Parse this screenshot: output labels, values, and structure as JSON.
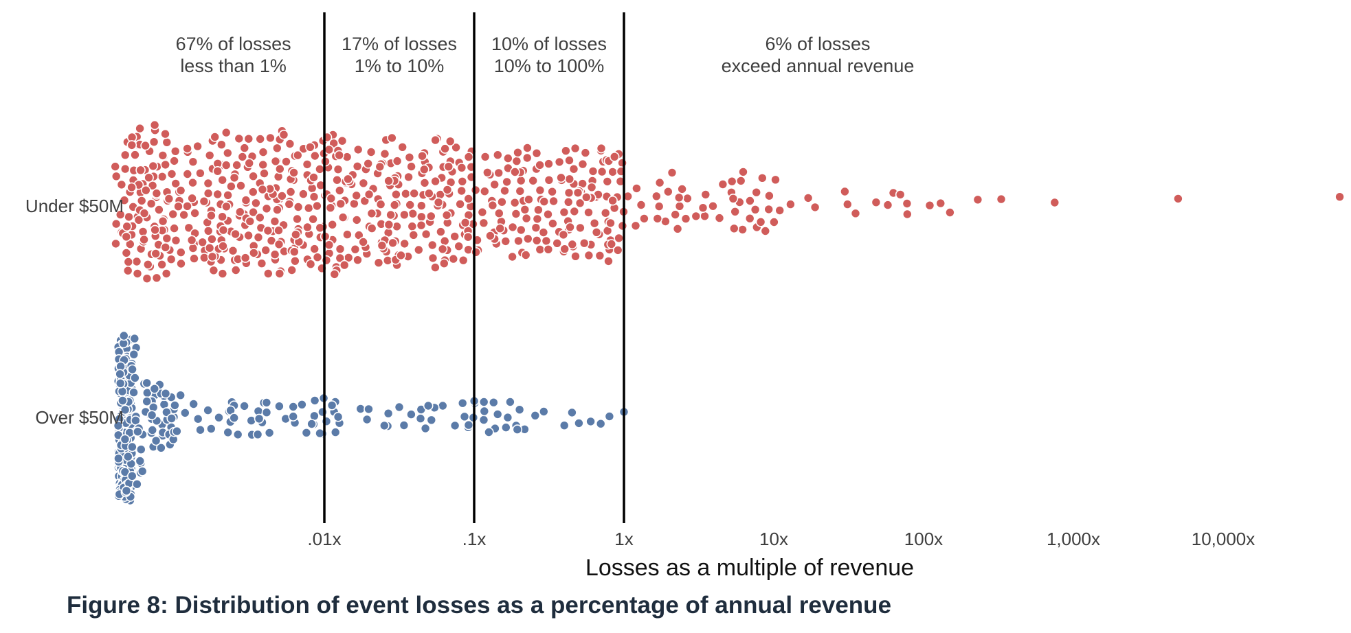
{
  "caption": "Figure 8: Distribution of event losses as a percentage of annual revenue",
  "chart_data": {
    "type": "scatter",
    "subtype": "beeswarm",
    "xlabel": "Losses as a multiple of revenue",
    "x_scale": "log",
    "xlim": [
      0.0003,
      80000
    ],
    "x_ticks": [
      {
        "value": 0.01,
        "label": ".01x"
      },
      {
        "value": 0.1,
        "label": ".1x"
      },
      {
        "value": 1,
        "label": "1x"
      },
      {
        "value": 10,
        "label": "10x"
      },
      {
        "value": 100,
        "label": "100x"
      },
      {
        "value": 1000,
        "label": "1,000x"
      },
      {
        "value": 10000,
        "label": "10,000x"
      }
    ],
    "categories": [
      "Under $50M",
      "Over $50M"
    ],
    "threshold_lines": [
      0.01,
      0.1,
      1
    ],
    "regions": [
      {
        "line1": "67% of losses",
        "line2": "less than 1%",
        "x_from": 0.0004,
        "x_to": 0.01
      },
      {
        "line1": "17% of losses",
        "line2": "1% to 10%",
        "x_from": 0.01,
        "x_to": 0.1
      },
      {
        "line1": "10% of losses",
        "line2": "10% to 100%",
        "x_from": 0.1,
        "x_to": 1
      },
      {
        "line1": "6% of losses",
        "line2": "exceed annual revenue",
        "x_from": 1,
        "x_to": 60000
      }
    ],
    "grid": false,
    "legend": "none",
    "series": [
      {
        "category": "Under $50M",
        "color": "#d05c5a",
        "density_bins": [
          {
            "x_from": 0.0004,
            "x_to": 0.001,
            "count": 100
          },
          {
            "x_from": 0.001,
            "x_to": 0.01,
            "count": 210
          },
          {
            "x_from": 0.01,
            "x_to": 0.1,
            "count": 190
          },
          {
            "x_from": 0.1,
            "x_to": 1,
            "count": 150
          },
          {
            "x_from": 1,
            "x_to": 10,
            "count": 45
          },
          {
            "x_from": 10,
            "x_to": 100,
            "count": 15
          }
        ],
        "outliers": [
          110,
          130,
          150,
          230,
          330,
          750,
          5000,
          60000
        ]
      },
      {
        "category": "Over $50M",
        "color": "#5b7ba8",
        "density_bins": [
          {
            "x_from": 0.00042,
            "x_to": 0.00052,
            "count": 230
          },
          {
            "x_from": 0.00052,
            "x_to": 0.001,
            "count": 60
          },
          {
            "x_from": 0.001,
            "x_to": 0.01,
            "count": 45
          },
          {
            "x_from": 0.01,
            "x_to": 0.1,
            "count": 30
          },
          {
            "x_from": 0.1,
            "x_to": 0.3,
            "count": 18
          }
        ],
        "outliers": [
          0.4,
          0.45,
          0.5,
          0.6,
          0.7,
          0.8,
          1.0
        ]
      }
    ]
  }
}
